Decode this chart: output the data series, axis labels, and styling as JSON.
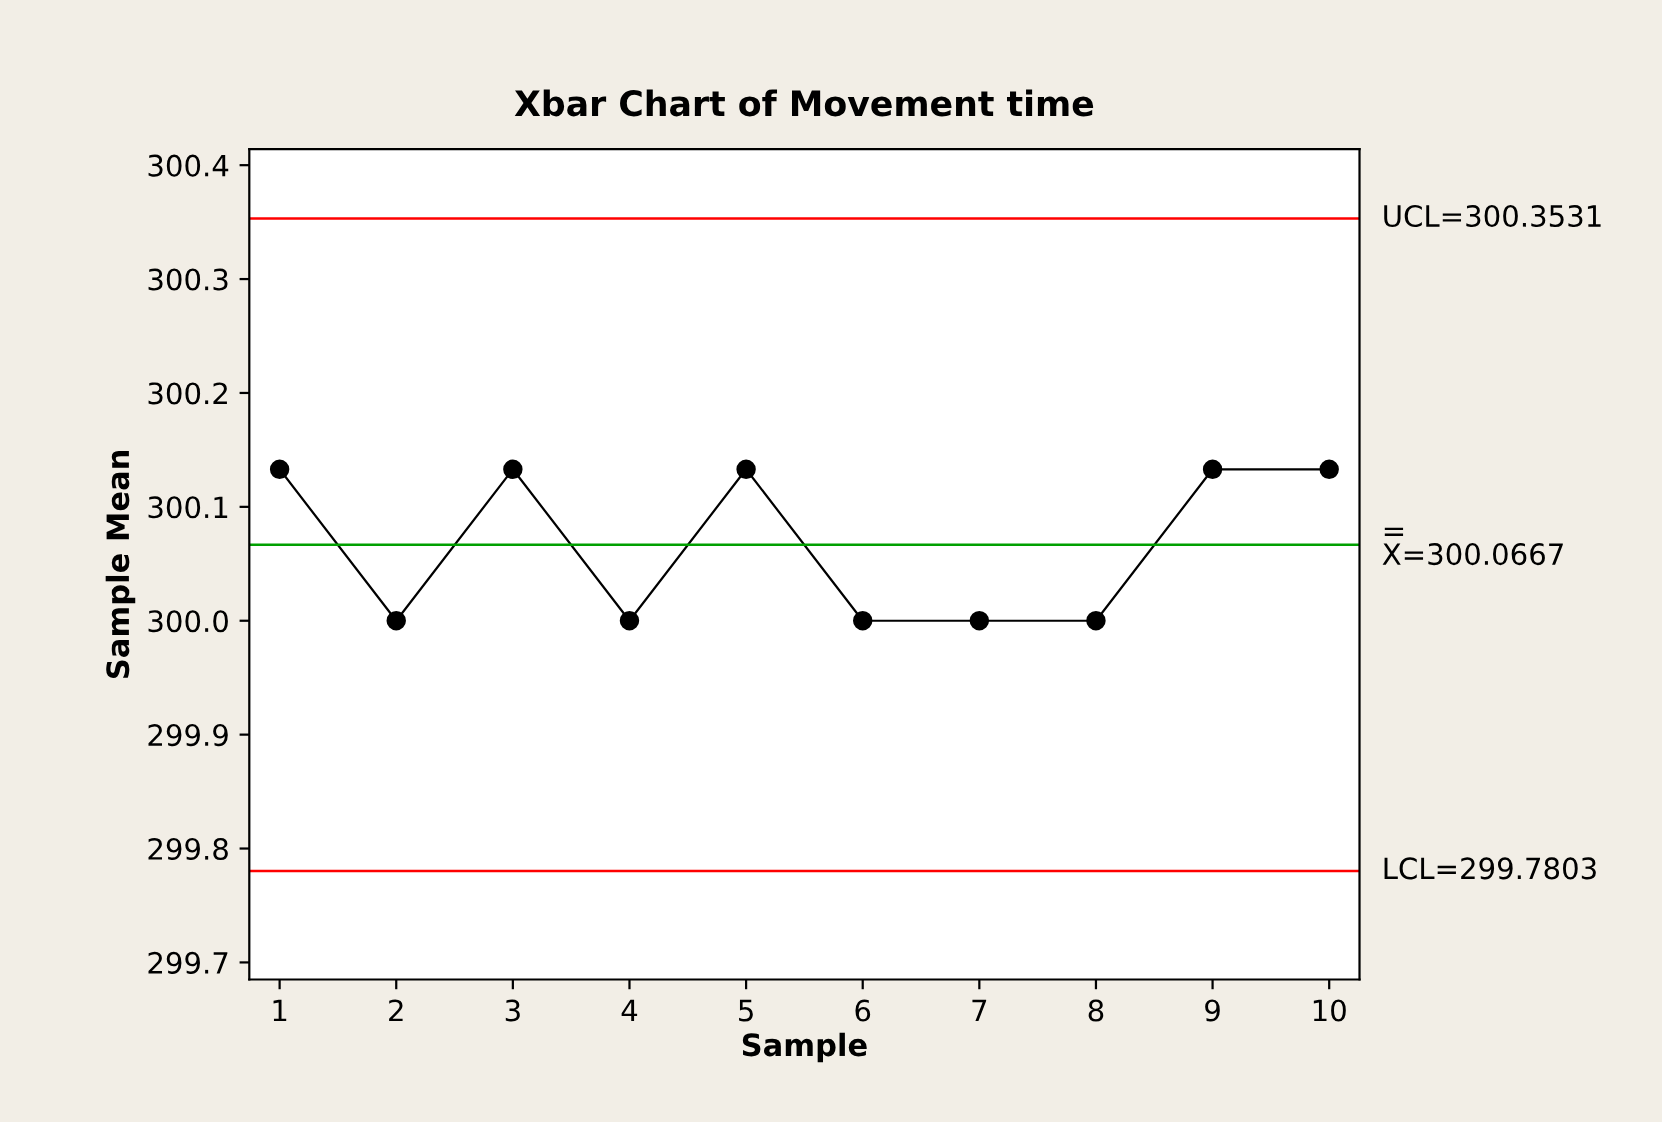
{
  "chart_data": {
    "type": "line",
    "title": "Xbar Chart of Movement time",
    "xlabel": "Sample",
    "ylabel": "Sample Mean",
    "x": [
      1,
      2,
      3,
      4,
      5,
      6,
      7,
      8,
      9,
      10
    ],
    "series": [
      {
        "color": "#000000",
        "values": [
          300.133,
          300.0,
          300.133,
          300.0,
          300.133,
          300.0,
          300.0,
          300.0,
          300.133,
          300.133
        ]
      }
    ],
    "marker": "circle",
    "line_style": "solid",
    "xlim": [
      0.74,
      10.26
    ],
    "xticks": [
      1,
      2,
      3,
      4,
      5,
      6,
      7,
      8,
      9,
      10
    ],
    "ylim": [
      299.685,
      300.414
    ],
    "yticks": [
      299.7,
      299.8,
      299.9,
      {
        "value": 300.0,
        "label": "300.0"
      },
      300.1,
      300.2,
      300.3,
      300.4
    ],
    "ref_lines": [
      {
        "axis": "y",
        "value": 300.3531,
        "label": "UCL=300.3531",
        "color": "#ff0000"
      },
      {
        "axis": "y",
        "value": 300.0667,
        "label": "=\nX=300.0667",
        "color": "#00a000"
      },
      {
        "axis": "y",
        "value": 299.7803,
        "label": "LCL=299.7803",
        "color": "#ff0000"
      }
    ],
    "grid": false,
    "legend": false
  }
}
